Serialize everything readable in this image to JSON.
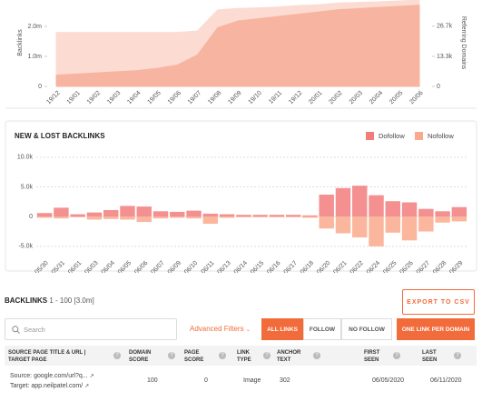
{
  "chart_data": [
    {
      "type": "area",
      "y_label": "Backlinks",
      "y2_label": "Referring Domains",
      "categories": [
        "19/12",
        "19/01",
        "19/02",
        "19/03",
        "19/04",
        "19/05",
        "19/06",
        "19/07",
        "19/08",
        "19/09",
        "19/10",
        "19/11",
        "19/12",
        "20/01",
        "20/02",
        "20/03",
        "20/04",
        "20/05",
        "20/06"
      ],
      "series": [
        {
          "color": "#fcdcd2",
          "values": [
            1800000,
            1800000,
            1800000,
            1800000,
            1800000,
            1800000,
            1800000,
            1850000,
            2550000,
            2600000,
            2620000,
            2650000,
            2700000,
            2720000,
            2780000,
            2800000,
            2820000,
            2850000,
            2880000
          ]
        },
        {
          "color": "#f7b4a1",
          "axis": "y2",
          "values": [
            5000,
            5500,
            6000,
            6500,
            7000,
            8000,
            9500,
            14000,
            26000,
            29000,
            30000,
            31000,
            32000,
            33000,
            34000,
            34500,
            35000,
            35500,
            36000
          ]
        }
      ],
      "ylim": [
        0,
        2880000
      ],
      "yticks": [
        0,
        {
          "value": 1000000,
          "label": "1.0m"
        },
        {
          "value": 2000000,
          "label": "2.0m"
        }
      ],
      "y2lim": [
        0,
        38300
      ],
      "y2ticks": [
        0,
        {
          "value": 13300,
          "label": "13.3k"
        },
        {
          "value": 26700,
          "label": "26.7k"
        }
      ],
      "grid": false
    },
    {
      "type": "bar",
      "title": "NEW & LOST BACKLINKS",
      "categories": [
        "05/30",
        "05/31",
        "06/01",
        "06/03",
        "06/04",
        "06/05",
        "06/06",
        "06/07",
        "06/09",
        "06/10",
        "06/11",
        "06/13",
        "06/14",
        "06/15",
        "06/16",
        "06/17",
        "06/18",
        "06/20",
        "06/21",
        "06/22",
        "06/24",
        "06/25",
        "06/26",
        "06/27",
        "06/28",
        "06/29"
      ],
      "series": [
        {
          "name": "Dofollow",
          "color": "#f27c7c",
          "values": [
            600,
            1500,
            400,
            700,
            1100,
            1800,
            1700,
            900,
            800,
            1000,
            500,
            400,
            300,
            300,
            300,
            300,
            200,
            3700,
            4800,
            5200,
            3600,
            2600,
            2400,
            1300,
            900,
            1600
          ]
        },
        {
          "name": "Nofollow",
          "color": "#f9aa8c",
          "values": [
            -200,
            -300,
            -100,
            -500,
            -400,
            -500,
            -900,
            -300,
            -200,
            -300,
            -1200,
            -200,
            -100,
            -100,
            -100,
            -100,
            -200,
            -2000,
            -2800,
            -3500,
            -5000,
            -2700,
            -4000,
            -2500,
            -1000,
            -800
          ]
        }
      ],
      "ylim": [
        -6400,
        11200
      ],
      "yticks": [
        {
          "value": -5000,
          "label": "-5.0k"
        },
        0,
        {
          "value": 5000,
          "label": "5.0k"
        },
        {
          "value": 10000,
          "label": "10.0k"
        }
      ],
      "grid": true,
      "legend": "top-right"
    }
  ],
  "table_section": {
    "title": "BACKLINKS",
    "range": "1 - 100 [3.0m]",
    "export": "EXPORT TO CSV",
    "search": "Search",
    "filters": "Advanced Filters",
    "tabs": [
      "ALL LINKS",
      "FOLLOW",
      "NO FOLLOW"
    ],
    "per_domain": "ONE LINK PER DOMAIN",
    "headers": [
      "SOURCE PAGE TITLE & URL | TARGET PAGE",
      "DOMAIN SCORE",
      "PAGE SCORE",
      "LINK TYPE",
      "ANCHOR TEXT",
      "FIRST SEEN",
      "LAST SEEN"
    ],
    "rows": [
      [
        "Source: google.com/url?q...",
        "Target: app.neilpatel.com/",
        100,
        0,
        "Image",
        302,
        "06/05/2020",
        "06/11/2020"
      ]
    ]
  }
}
